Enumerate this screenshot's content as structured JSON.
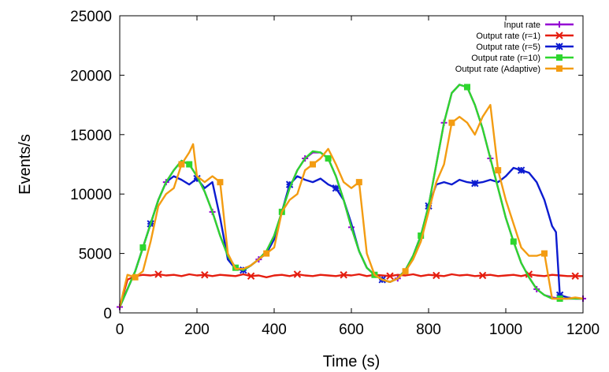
{
  "chart_data": {
    "type": "line",
    "xlabel": "Time (s)",
    "ylabel": "Events/s",
    "xlim": [
      0,
      1200
    ],
    "ylim": [
      0,
      25000
    ],
    "xticks": [
      0,
      200,
      400,
      600,
      800,
      1000,
      1200
    ],
    "yticks": [
      0,
      5000,
      10000,
      15000,
      20000,
      25000
    ],
    "grid": false,
    "legend_position": "top-right",
    "series": [
      {
        "name": "Input rate",
        "color": "#9400d3",
        "marker": "plus",
        "x": [
          0,
          20,
          40,
          60,
          80,
          100,
          120,
          140,
          160,
          180,
          200,
          220,
          240,
          260,
          280,
          300,
          320,
          340,
          360,
          380,
          400,
          420,
          440,
          460,
          480,
          500,
          520,
          540,
          560,
          580,
          600,
          620,
          640,
          660,
          680,
          700,
          720,
          740,
          760,
          780,
          800,
          820,
          840,
          860,
          880,
          900,
          920,
          940,
          960,
          980,
          1000,
          1020,
          1040,
          1060,
          1080,
          1100,
          1120,
          1140,
          1160,
          1180,
          1200
        ],
        "y": [
          500,
          2000,
          3500,
          5500,
          7500,
          9500,
          11000,
          12000,
          12800,
          12500,
          11500,
          10200,
          8500,
          6500,
          4800,
          3800,
          3600,
          4000,
          4500,
          5200,
          6500,
          8500,
          10500,
          12000,
          13000,
          13500,
          13500,
          13000,
          11500,
          9500,
          7200,
          5200,
          3800,
          3200,
          2800,
          2600,
          2900,
          3600,
          4800,
          6500,
          9000,
          12500,
          16000,
          18500,
          19200,
          19000,
          17500,
          15500,
          13000,
          10500,
          8000,
          6000,
          4200,
          3000,
          2000,
          1500,
          1300,
          1200,
          1200,
          1200,
          1200
        ]
      },
      {
        "name": "Output rate (r=1)",
        "color": "#e51e10",
        "marker": "cross",
        "x": [
          0,
          20,
          40,
          60,
          80,
          100,
          120,
          140,
          160,
          180,
          200,
          220,
          240,
          260,
          280,
          300,
          320,
          340,
          360,
          380,
          400,
          420,
          440,
          460,
          480,
          500,
          520,
          540,
          560,
          580,
          600,
          620,
          640,
          660,
          680,
          700,
          720,
          740,
          760,
          780,
          800,
          820,
          840,
          860,
          880,
          900,
          920,
          940,
          960,
          980,
          1000,
          1020,
          1040,
          1060,
          1080,
          1100,
          1120,
          1140,
          1160,
          1180,
          1200
        ],
        "y": [
          500,
          2800,
          3100,
          3200,
          3150,
          3250,
          3150,
          3200,
          3100,
          3250,
          3150,
          3200,
          3100,
          3200,
          3150,
          3100,
          3250,
          3100,
          3150,
          3000,
          3150,
          3200,
          3100,
          3250,
          3150,
          3100,
          3200,
          3150,
          3100,
          3200,
          3150,
          3250,
          3100,
          3200,
          3150,
          3100,
          3200,
          3150,
          3250,
          3100,
          3200,
          3150,
          3100,
          3250,
          3150,
          3200,
          3100,
          3150,
          3200,
          3100,
          3150,
          3200,
          3100,
          3250,
          3150,
          3100,
          3200,
          3150,
          3100,
          3100,
          3100
        ]
      },
      {
        "name": "Output rate (r=5)",
        "color": "#0c1bd0",
        "marker": "star",
        "x": [
          0,
          20,
          40,
          60,
          80,
          100,
          120,
          140,
          160,
          180,
          200,
          220,
          240,
          260,
          280,
          300,
          320,
          340,
          360,
          380,
          400,
          420,
          440,
          460,
          480,
          500,
          520,
          540,
          560,
          580,
          600,
          620,
          640,
          660,
          680,
          700,
          720,
          740,
          760,
          780,
          800,
          820,
          840,
          860,
          880,
          900,
          920,
          940,
          960,
          980,
          1000,
          1020,
          1040,
          1060,
          1080,
          1100,
          1120,
          1130,
          1140,
          1160,
          1180,
          1200
        ],
        "y": [
          500,
          2000,
          3500,
          5500,
          7500,
          9500,
          11000,
          11500,
          11200,
          10800,
          11300,
          10500,
          11000,
          8000,
          4500,
          3700,
          3600,
          4000,
          4500,
          5000,
          6200,
          8500,
          10800,
          11500,
          11200,
          11000,
          11300,
          10800,
          10500,
          9500,
          7500,
          5200,
          3800,
          3200,
          2800,
          2600,
          2900,
          3600,
          4800,
          6500,
          9000,
          10800,
          11000,
          10800,
          11200,
          11000,
          10900,
          11000,
          11200,
          11000,
          11500,
          12200,
          12000,
          11800,
          11000,
          9500,
          7300,
          6800,
          1500,
          1300,
          1200,
          1200
        ]
      },
      {
        "name": "Output rate (r=10)",
        "color": "#2ed62e",
        "marker": "square",
        "x": [
          0,
          20,
          40,
          60,
          80,
          100,
          120,
          140,
          160,
          180,
          200,
          220,
          240,
          260,
          280,
          300,
          320,
          340,
          360,
          380,
          400,
          420,
          440,
          460,
          480,
          500,
          520,
          540,
          560,
          580,
          600,
          620,
          640,
          660,
          680,
          700,
          720,
          740,
          760,
          780,
          800,
          820,
          840,
          860,
          880,
          900,
          920,
          940,
          960,
          980,
          1000,
          1020,
          1040,
          1060,
          1080,
          1100,
          1120,
          1140,
          1160,
          1180,
          1200
        ],
        "y": [
          500,
          2000,
          3500,
          5500,
          7500,
          9500,
          11000,
          12000,
          12800,
          12500,
          11500,
          10200,
          8500,
          6500,
          4800,
          3800,
          3600,
          4000,
          4500,
          5200,
          6500,
          8500,
          10500,
          12000,
          13000,
          13600,
          13500,
          13000,
          11500,
          9500,
          7200,
          5200,
          3800,
          3200,
          2800,
          2600,
          2900,
          3600,
          4800,
          6500,
          9000,
          12500,
          16000,
          18500,
          19200,
          19000,
          17500,
          15500,
          13000,
          10500,
          8000,
          6000,
          4200,
          3000,
          2000,
          1500,
          1200,
          1200,
          1200,
          1200,
          1200
        ]
      },
      {
        "name": "Output rate (Adaptive)",
        "color": "#f39c12",
        "marker": "square",
        "x": [
          0,
          20,
          40,
          60,
          80,
          100,
          120,
          140,
          160,
          180,
          190,
          200,
          220,
          240,
          260,
          280,
          300,
          320,
          340,
          360,
          380,
          400,
          420,
          440,
          460,
          480,
          500,
          520,
          540,
          560,
          580,
          600,
          620,
          640,
          660,
          680,
          700,
          720,
          740,
          760,
          780,
          800,
          820,
          840,
          860,
          880,
          900,
          920,
          940,
          960,
          980,
          1000,
          1020,
          1040,
          1060,
          1080,
          1100,
          1120,
          1140,
          1160,
          1180,
          1200
        ],
        "y": [
          500,
          3200,
          3000,
          3500,
          6000,
          9000,
          10000,
          10500,
          12500,
          13500,
          14200,
          11500,
          11000,
          11500,
          11000,
          5000,
          3700,
          3700,
          4000,
          4500,
          5000,
          5500,
          8500,
          9500,
          10000,
          12000,
          12500,
          13000,
          13800,
          12500,
          11000,
          10500,
          11000,
          5000,
          3200,
          2800,
          2600,
          2900,
          3500,
          4500,
          6000,
          8500,
          11000,
          12500,
          16000,
          16500,
          16000,
          15000,
          16500,
          17500,
          12000,
          9500,
          7500,
          5500,
          4800,
          4800,
          5000,
          1200,
          1200,
          1200,
          1300,
          1200
        ]
      }
    ]
  }
}
